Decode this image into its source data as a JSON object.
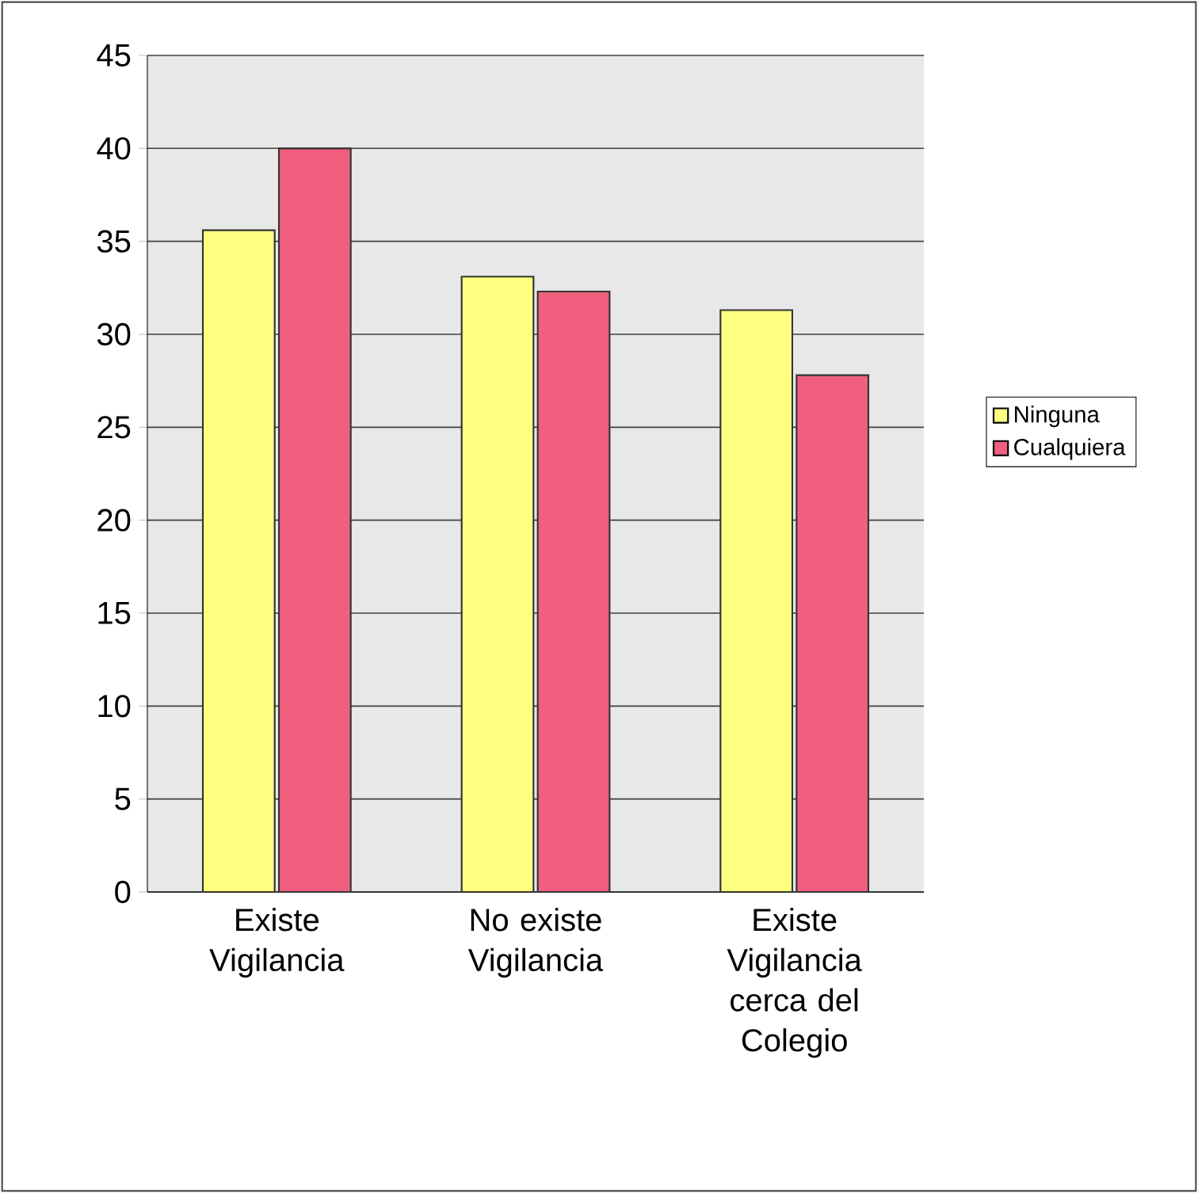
{
  "chart_data": {
    "type": "bar",
    "categories": [
      "Existe Vigilancia",
      "No existe Vigilancia",
      "Existe Vigilancia cerca del Colegio"
    ],
    "series": [
      {
        "name": "Ninguna",
        "color": "#ffff80",
        "values": [
          35.6,
          33.1,
          31.3
        ]
      },
      {
        "name": "Cualquiera",
        "color": "#f0607e",
        "values": [
          40,
          32.3,
          27.8
        ]
      }
    ],
    "ylim": [
      0,
      45
    ],
    "yticks": [
      0,
      5,
      10,
      15,
      20,
      25,
      30,
      35,
      40,
      45
    ],
    "grid": "y",
    "legend": "right"
  }
}
